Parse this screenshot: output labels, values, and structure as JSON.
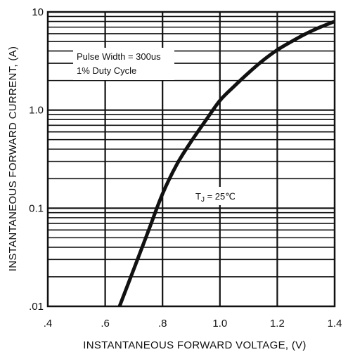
{
  "chart_data": {
    "type": "line",
    "title": "",
    "xlabel": "INSTANTANEOUS FORWARD VOLTAGE, (V)",
    "ylabel": "INSTANTANEOUS FORWARD CURRENT, (A)",
    "xlim": [
      0.4,
      1.4
    ],
    "ylim": [
      0.01,
      10
    ],
    "y_scale": "log",
    "grid": true,
    "x_ticks": [
      {
        "value": 0.4,
        "label": ".4"
      },
      {
        "value": 0.6,
        "label": ".6"
      },
      {
        "value": 0.8,
        "label": ".8"
      },
      {
        "value": 1.0,
        "label": "1.0"
      },
      {
        "value": 1.2,
        "label": "1.2"
      },
      {
        "value": 1.4,
        "label": "1.4"
      }
    ],
    "y_ticks": [
      {
        "value": 0.01,
        "label": ".01"
      },
      {
        "value": 0.1,
        "label": "0.1"
      },
      {
        "value": 1,
        "label": "1.0"
      },
      {
        "value": 10,
        "label": "10"
      }
    ],
    "annotations": {
      "pulse_width": "Pulse Width = 300us",
      "duty_cycle": "1% Duty Cycle",
      "tj_prefix": "T",
      "tj_subscript": "J",
      "tj_suffix": " = 25℃"
    },
    "series": [
      {
        "x": [
          0.65,
          0.7,
          0.75,
          0.8,
          0.85,
          0.9,
          0.95,
          1.0,
          1.05,
          1.1,
          1.15,
          1.2,
          1.25,
          1.3,
          1.35,
          1.4
        ],
        "y": [
          0.01,
          0.024,
          0.058,
          0.14,
          0.28,
          0.48,
          0.78,
          1.25,
          1.75,
          2.4,
          3.2,
          4.1,
          5.0,
          6.0,
          7.0,
          8.0
        ]
      }
    ],
    "colors": {
      "line": "#111111",
      "grid": "#111111",
      "background": "#ffffff"
    }
  }
}
